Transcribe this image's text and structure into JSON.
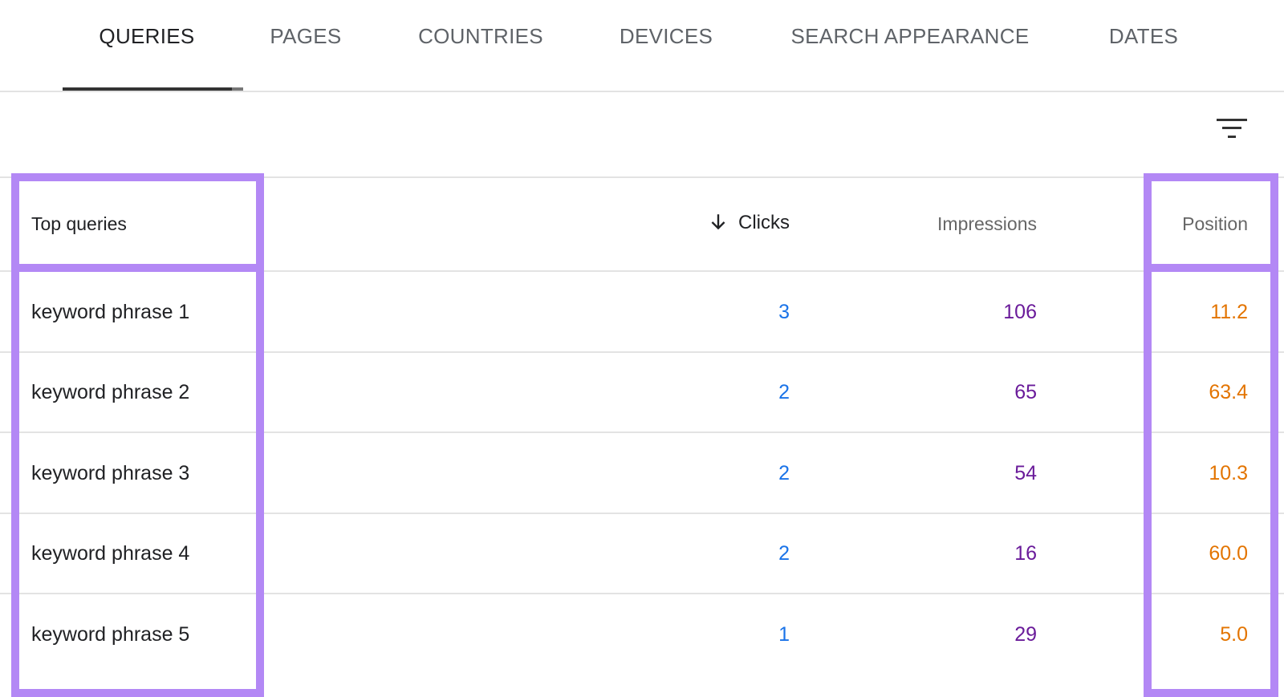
{
  "tabs": [
    {
      "label": "QUERIES",
      "active": true
    },
    {
      "label": "PAGES"
    },
    {
      "label": "COUNTRIES"
    },
    {
      "label": "DEVICES"
    },
    {
      "label": "SEARCH APPEARANCE"
    },
    {
      "label": "DATES"
    }
  ],
  "toolbar": {
    "filter_icon": "filter-list-icon"
  },
  "table": {
    "headers": {
      "query": "Top queries",
      "clicks": "Clicks",
      "impressions": "Impressions",
      "position": "Position"
    },
    "sort": {
      "column": "clicks",
      "direction": "descending",
      "icon": "arrow-down-icon"
    },
    "rows": [
      {
        "query": "keyword phrase 1",
        "clicks": "3",
        "impressions": "106",
        "position": "11.2"
      },
      {
        "query": "keyword phrase 2",
        "clicks": "2",
        "impressions": "65",
        "position": "63.4"
      },
      {
        "query": "keyword phrase 3",
        "clicks": "2",
        "impressions": "54",
        "position": "10.3"
      },
      {
        "query": "keyword phrase 4",
        "clicks": "2",
        "impressions": "16",
        "position": "60.0"
      },
      {
        "query": "keyword phrase 5",
        "clicks": "1",
        "impressions": "29",
        "position": "5.0"
      }
    ]
  },
  "colors": {
    "clicks": "#1a73e8",
    "impressions": "#6a1b9a",
    "position": "#e37400",
    "highlight": "#b388f5"
  }
}
